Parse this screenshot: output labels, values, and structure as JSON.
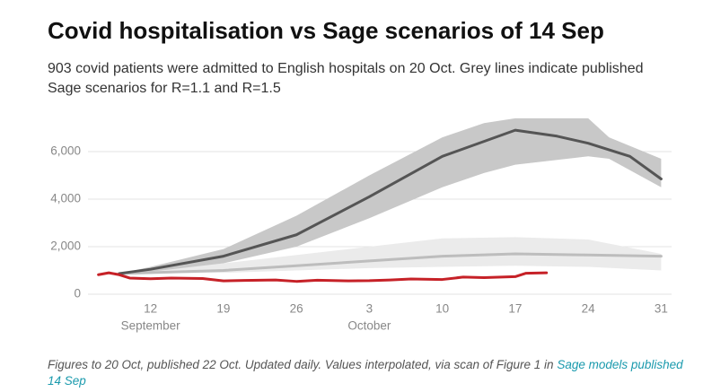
{
  "chart_data": {
    "type": "line",
    "title": "Covid hospitalisation vs Sage scenarios of 14 Sep",
    "subtitle": "903 covid patients were admitted to English hospitals on 20 Oct. Grey lines indicate published Sage scenarios for R=1.1 and R=1.5",
    "note": "Figures to 20 Oct, published 22 Oct. Updated daily. Values interpolated, via scan of Figure 1 in",
    "link": "Sage models published 14 Sep",
    "xlim": [
      "09-06",
      "11-01"
    ],
    "xticks": [
      {
        "value": "09-12",
        "label": "12"
      },
      {
        "value": "09-19",
        "label": "19"
      },
      {
        "value": "09-26",
        "label": "26"
      },
      {
        "value": "10-03",
        "label": "3"
      },
      {
        "value": "10-10",
        "label": "10"
      },
      {
        "value": "10-17",
        "label": "17"
      },
      {
        "value": "10-24",
        "label": "24"
      },
      {
        "value": "10-31",
        "label": "31"
      }
    ],
    "month_labels": [
      {
        "value": "09-12",
        "label": "September"
      },
      {
        "value": "10-03",
        "label": "October"
      }
    ],
    "ylim": [
      0,
      7500
    ],
    "yticks": [
      0,
      {
        "value": 2000,
        "label": "2,000"
      },
      {
        "value": 4000,
        "label": "4,000"
      },
      {
        "value": 6000,
        "label": "6,000"
      }
    ],
    "grid": true,
    "bands": [
      {
        "color": "#ebebeb",
        "x": [
          "09-09",
          "09-19",
          "10-03",
          "10-10",
          "10-17",
          "10-24",
          "10-31"
        ],
        "lower": [
          870,
          900,
          1100,
          1150,
          1200,
          1150,
          1000
        ],
        "upper": [
          870,
          1300,
          2000,
          2350,
          2400,
          2300,
          1700
        ]
      },
      {
        "color": "#c8c8c8",
        "x": [
          "09-09",
          "09-12",
          "09-19",
          "09-26",
          "10-03",
          "10-10",
          "10-14",
          "10-17",
          "10-24",
          "10-26",
          "10-31"
        ],
        "lower": [
          870,
          950,
          1300,
          2000,
          3200,
          4500,
          5100,
          5450,
          5800,
          5700,
          4500
        ],
        "upper": [
          870,
          1150,
          1900,
          3300,
          5000,
          6600,
          7200,
          7400,
          7400,
          6600,
          5700
        ]
      }
    ],
    "series": [
      {
        "color": "#bdbdbd",
        "x": [
          "09-09",
          "09-19",
          "09-26",
          "10-03",
          "10-10",
          "10-17",
          "10-24",
          "10-31"
        ],
        "values": [
          870,
          1000,
          1200,
          1400,
          1600,
          1700,
          1650,
          1600
        ]
      },
      {
        "color": "#555555",
        "x": [
          "09-09",
          "09-12",
          "09-19",
          "09-26",
          "10-03",
          "10-10",
          "10-17",
          "10-21",
          "10-24",
          "10-28",
          "10-31"
        ],
        "values": [
          870,
          1050,
          1600,
          2500,
          4100,
          5800,
          6900,
          6650,
          6350,
          5800,
          4850
        ]
      },
      {
        "color": "#c62127",
        "x": [
          "09-07",
          "09-08",
          "09-09",
          "09-10",
          "09-12",
          "09-14",
          "09-17",
          "09-19",
          "09-21",
          "09-24",
          "09-26",
          "09-28",
          "10-01",
          "10-03",
          "10-05",
          "10-07",
          "10-10",
          "10-12",
          "10-14",
          "10-17",
          "10-18",
          "10-20"
        ],
        "values": [
          820,
          900,
          820,
          680,
          650,
          680,
          660,
          560,
          580,
          600,
          540,
          590,
          560,
          570,
          600,
          640,
          620,
          720,
          700,
          740,
          880,
          903
        ]
      }
    ]
  }
}
